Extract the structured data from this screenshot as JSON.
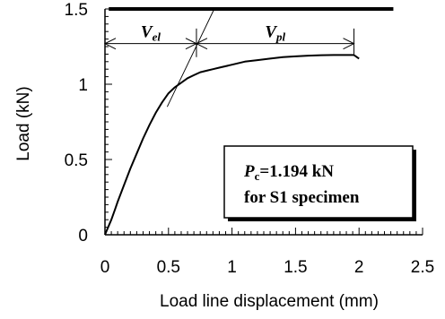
{
  "chart_data": {
    "type": "line",
    "title": "",
    "xlabel": "Load line displacement (mm)",
    "ylabel": "Load (kN)",
    "xlim": [
      0,
      2.5
    ],
    "ylim": [
      0,
      1.5
    ],
    "xticks": [
      "0",
      "0.5",
      "1",
      "1.5",
      "2",
      "2.5"
    ],
    "yticks": [
      "0",
      "0.5",
      "1",
      "1.5"
    ],
    "grid": false,
    "legend": "none",
    "series": [
      {
        "x": [
          0,
          0.02,
          0.05,
          0.08,
          0.1,
          0.15,
          0.2,
          0.25,
          0.3,
          0.35,
          0.4,
          0.45,
          0.5,
          0.55,
          0.6,
          0.65,
          0.7,
          0.75,
          0.8,
          0.85,
          0.9,
          1.0,
          1.1,
          1.2,
          1.3,
          1.4,
          1.5,
          1.6,
          1.7,
          1.8,
          1.9,
          1.96,
          2.0
        ],
        "y": [
          0,
          0.04,
          0.1,
          0.17,
          0.22,
          0.33,
          0.44,
          0.54,
          0.64,
          0.73,
          0.81,
          0.88,
          0.94,
          0.98,
          1.01,
          1.04,
          1.06,
          1.08,
          1.09,
          1.1,
          1.11,
          1.13,
          1.15,
          1.16,
          1.17,
          1.18,
          1.185,
          1.19,
          1.193,
          1.194,
          1.194,
          1.194,
          1.17
        ]
      }
    ],
    "elastic_line": {
      "x": [
        0.49,
        0.86
      ],
      "y": [
        0.85,
        1.5
      ]
    },
    "horizontal_line": {
      "y": 1.5,
      "x": [
        0.03,
        2.27
      ]
    },
    "annotations": {
      "v_el": {
        "x_start": 0.0,
        "x_end": 0.72,
        "y": 1.27,
        "var": "V",
        "sub": "el"
      },
      "v_pl": {
        "x_start": 0.72,
        "x_end": 1.96,
        "y": 1.27,
        "var": "V",
        "sub": "pl"
      }
    },
    "note": {
      "var": "P",
      "sub": "c",
      "value": "=1.194 kN",
      "line2": "for S1 specimen"
    }
  }
}
